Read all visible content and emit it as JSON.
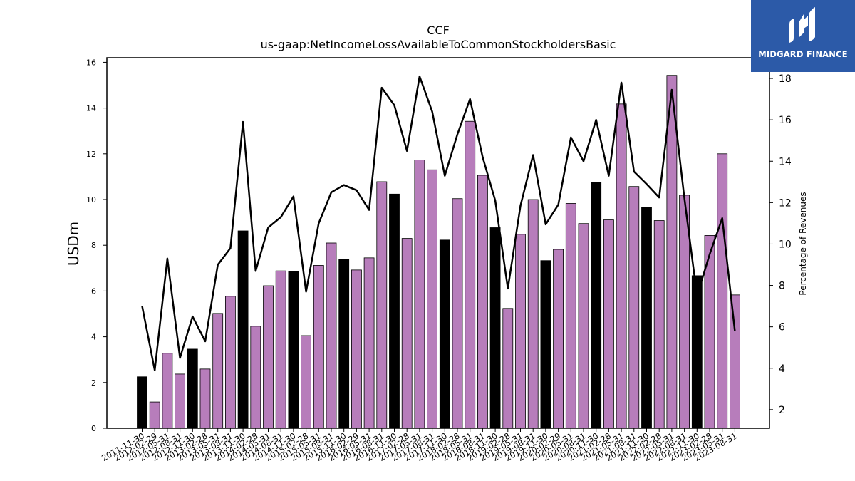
{
  "chart_data": {
    "type": "bar",
    "title": "CCF",
    "subtitle": "us-gaap:NetIncomeLossAvailableToCommonStockholdersBasic",
    "ylabel": "USDm",
    "y2label": "Percentage of Revenues",
    "ylim": [
      0,
      16.2
    ],
    "y2lim": [
      1.1,
      19.0
    ],
    "yticks": [
      0,
      2,
      4,
      6,
      8,
      10,
      12,
      14,
      16
    ],
    "y2ticks": [
      2,
      4,
      6,
      8,
      10,
      12,
      14,
      16,
      18
    ],
    "highlight_color": "#000000",
    "bar_color": "#b77dbb",
    "line_color": "#000000",
    "categories": [
      "2011-11-30",
      "2012-02-29",
      "2012-05-31",
      "2012-08-31",
      "2012-11-30",
      "2013-02-28",
      "2013-05-31",
      "2013-08-31",
      "2013-11-30",
      "2014-02-28",
      "2014-05-31",
      "2014-08-31",
      "2014-11-30",
      "2015-02-28",
      "2015-05-31",
      "2015-08-31",
      "2015-11-30",
      "2016-02-29",
      "2016-05-31",
      "2016-08-31",
      "2016-11-30",
      "2017-02-28",
      "2017-05-31",
      "2017-08-31",
      "2017-11-30",
      "2018-02-28",
      "2018-05-31",
      "2018-08-31",
      "2018-11-30",
      "2019-02-28",
      "2019-05-31",
      "2019-08-31",
      "2019-11-30",
      "2020-02-29",
      "2020-05-31",
      "2020-08-31",
      "2020-11-30",
      "2021-02-28",
      "2021-05-31",
      "2021-08-31",
      "2021-11-30",
      "2022-02-28",
      "2022-05-31",
      "2022-08-31",
      "2022-11-30",
      "2023-02-28",
      "2023-05-31",
      "2023-08-31"
    ],
    "series": [
      {
        "type": "bar",
        "values": [
          2.25,
          1.15,
          3.28,
          2.37,
          3.46,
          2.59,
          5.02,
          5.77,
          8.63,
          4.46,
          6.23,
          6.88,
          6.85,
          4.05,
          7.12,
          8.1,
          7.39,
          6.92,
          7.45,
          10.78,
          10.24,
          8.3,
          11.73,
          11.3,
          8.23,
          10.04,
          13.42,
          11.06,
          8.77,
          5.24,
          8.48,
          10.0,
          7.33,
          7.82,
          9.83,
          8.95,
          10.75,
          9.11,
          14.18,
          10.57,
          9.67,
          9.08,
          15.43,
          10.19,
          6.67,
          8.43,
          12.0,
          5.83
        ],
        "highlight": [
          true,
          false,
          false,
          false,
          true,
          false,
          false,
          false,
          true,
          false,
          false,
          false,
          true,
          false,
          false,
          false,
          true,
          false,
          false,
          false,
          true,
          false,
          false,
          false,
          true,
          false,
          false,
          false,
          true,
          false,
          false,
          false,
          true,
          false,
          false,
          false,
          true,
          false,
          false,
          false,
          true,
          false,
          false,
          false,
          true,
          false,
          false,
          false
        ]
      },
      {
        "type": "line",
        "axis": "right",
        "values": [
          7.0,
          3.9,
          9.3,
          4.5,
          6.5,
          5.3,
          9.0,
          9.8,
          15.9,
          8.7,
          10.8,
          11.3,
          12.3,
          7.7,
          11.0,
          12.5,
          12.85,
          12.6,
          11.65,
          17.55,
          16.7,
          14.5,
          18.1,
          16.4,
          13.3,
          15.3,
          17.0,
          14.2,
          12.1,
          7.85,
          11.85,
          14.3,
          10.95,
          11.9,
          15.15,
          14.0,
          16.0,
          13.3,
          17.8,
          13.5,
          12.9,
          12.25,
          17.45,
          12.2,
          7.5,
          9.5,
          11.25,
          5.8
        ]
      }
    ]
  },
  "logo": {
    "text": "MIDGARD FINANCE",
    "background": "#2c5aa8"
  }
}
